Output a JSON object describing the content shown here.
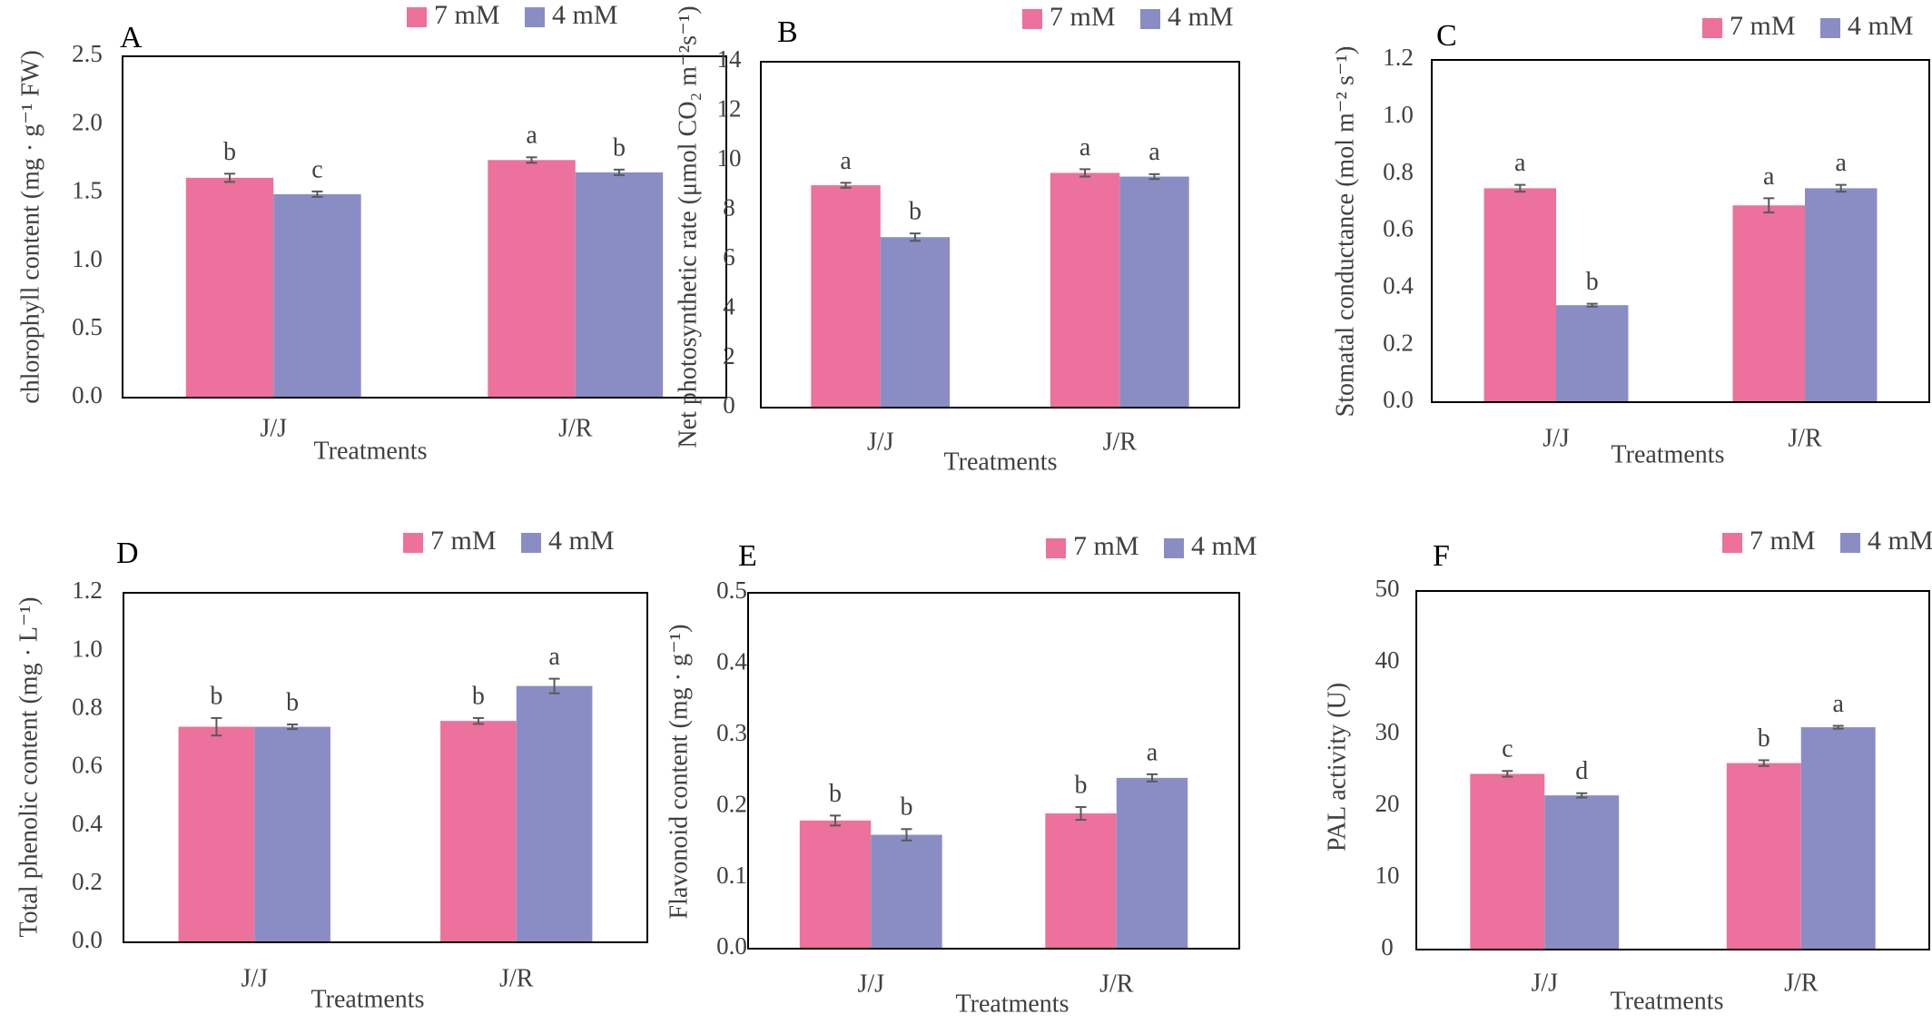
{
  "chart_data": [
    {
      "type": "bar",
      "panel": "A",
      "categories": [
        "J/J",
        "J/R"
      ],
      "series": [
        {
          "name": "7 mM",
          "values": [
            1.61,
            1.74
          ],
          "errors": [
            0.03,
            0.02
          ],
          "labels": [
            "b",
            "a"
          ]
        },
        {
          "name": "4 mM",
          "values": [
            1.49,
            1.65
          ],
          "errors": [
            0.02,
            0.02
          ],
          "labels": [
            "c",
            "b"
          ]
        }
      ],
      "xlabel": "Treatments",
      "ylabel": "chlorophyll content (mg · g⁻¹ FW)",
      "ylim": [
        0,
        2.5
      ],
      "ticks": [
        "0.0",
        "0.5",
        "1.0",
        "1.5",
        "2.0",
        "2.5"
      ],
      "grid": false,
      "legend": "top"
    },
    {
      "type": "bar",
      "panel": "B",
      "categories": [
        "J/J",
        "J/R"
      ],
      "series": [
        {
          "name": "7 mM",
          "values": [
            9.0,
            9.5
          ],
          "errors": [
            0.1,
            0.15
          ],
          "labels": [
            "a",
            "a"
          ]
        },
        {
          "name": "4 mM",
          "values": [
            6.9,
            9.35
          ],
          "errors": [
            0.15,
            0.1
          ],
          "labels": [
            "b",
            "a"
          ]
        }
      ],
      "xlabel": "Treatments",
      "ylabel": "Net photosynthetic rate (μmol CO₂ m⁻²s⁻¹)",
      "ylim": [
        0,
        14
      ],
      "ticks": [
        "0",
        "2",
        "4",
        "6",
        "8",
        "10",
        "12",
        "14"
      ],
      "grid": false,
      "legend": "top"
    },
    {
      "type": "bar",
      "panel": "C",
      "categories": [
        "J/J",
        "J/R"
      ],
      "series": [
        {
          "name": "7 mM",
          "values": [
            0.75,
            0.69
          ],
          "errors": [
            0.012,
            0.025
          ],
          "labels": [
            "a",
            "a"
          ]
        },
        {
          "name": "4 mM",
          "values": [
            0.34,
            0.75
          ],
          "errors": [
            0.005,
            0.012
          ],
          "labels": [
            "b",
            "a"
          ]
        }
      ],
      "xlabel": "Treatments",
      "ylabel": "Stomatal conductance (mol m⁻² s⁻¹)",
      "ylim": [
        0,
        1.2
      ],
      "ticks": [
        "0.0",
        "0.2",
        "0.4",
        "0.6",
        "0.8",
        "1.0",
        "1.2"
      ],
      "grid": false,
      "legend": "top"
    },
    {
      "type": "bar",
      "panel": "D",
      "categories": [
        "J/J",
        "J/R"
      ],
      "series": [
        {
          "name": "7 mM",
          "values": [
            0.74,
            0.76
          ],
          "errors": [
            0.03,
            0.01
          ],
          "labels": [
            "b",
            "b"
          ]
        },
        {
          "name": "4 mM",
          "values": [
            0.74,
            0.88
          ],
          "errors": [
            0.008,
            0.025
          ],
          "labels": [
            "b",
            "a"
          ]
        }
      ],
      "xlabel": "Treatments",
      "ylabel": "Total phenolic content (mg · L⁻¹)",
      "ylim": [
        0,
        1.2
      ],
      "ticks": [
        "0.0",
        "0.2",
        "0.4",
        "0.6",
        "0.8",
        "1.0",
        "1.2"
      ],
      "grid": false,
      "legend": "top"
    },
    {
      "type": "bar",
      "panel": "E",
      "categories": [
        "J/J",
        "J/R"
      ],
      "series": [
        {
          "name": "7 mM",
          "values": [
            0.18,
            0.19
          ],
          "errors": [
            0.007,
            0.009
          ],
          "labels": [
            "b",
            "b"
          ]
        },
        {
          "name": "4 mM",
          "values": [
            0.16,
            0.24
          ],
          "errors": [
            0.008,
            0.005
          ],
          "labels": [
            "b",
            "a"
          ]
        }
      ],
      "xlabel": "Treatments",
      "ylabel": "Flavonoid content (mg · g⁻¹)",
      "ylim": [
        0,
        0.5
      ],
      "ticks": [
        "0.0",
        "0.1",
        "0.2",
        "0.3",
        "0.4",
        "0.5"
      ],
      "grid": false,
      "legend": "top"
    },
    {
      "type": "bar",
      "panel": "F",
      "categories": [
        "J/J",
        "J/R"
      ],
      "series": [
        {
          "name": "7 mM",
          "values": [
            24.5,
            26.0
          ],
          "errors": [
            0.4,
            0.4
          ],
          "labels": [
            "c",
            "b"
          ]
        },
        {
          "name": "4 mM",
          "values": [
            21.5,
            31.0
          ],
          "errors": [
            0.3,
            0.2
          ],
          "labels": [
            "d",
            "a"
          ]
        }
      ],
      "xlabel": "Treatments",
      "ylabel": "PAL activity (U)",
      "ylim": [
        0,
        50
      ],
      "ticks": [
        "0",
        "10",
        "20",
        "30",
        "40",
        "50"
      ],
      "grid": false,
      "legend": "top"
    }
  ],
  "colors": {
    "series_7mM": "#EC719C",
    "series_4mM": "#8A8DC4",
    "error_bar": "#595959",
    "axis": "#000000",
    "text": "#404040"
  }
}
